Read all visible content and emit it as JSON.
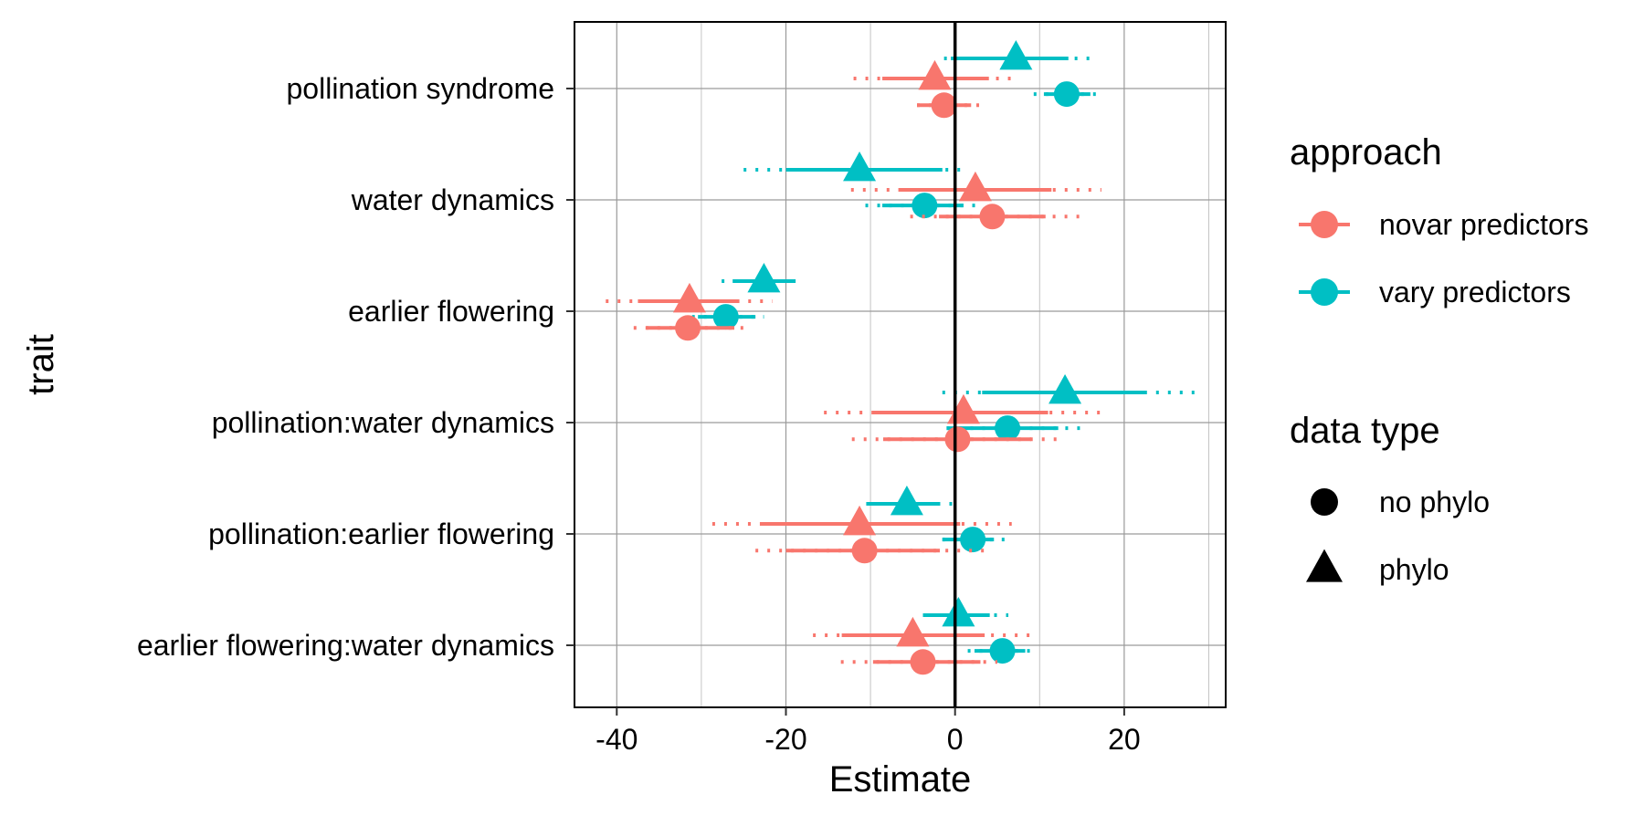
{
  "chart_data": {
    "type": "scatter",
    "subtype": "forest-plot",
    "xlabel": "Estimate",
    "ylabel": "trait",
    "xlim": [
      -45,
      32
    ],
    "x_ticks": [
      -40,
      -20,
      0,
      20
    ],
    "x_tick_labels": [
      "-40",
      "-20",
      "0",
      "20"
    ],
    "x_minor_ticks": [
      -30,
      -10,
      10,
      30
    ],
    "reference_line_x": 0,
    "grid": true,
    "categories": [
      "pollination syndrome",
      "water dynamics",
      "earlier flowering",
      "pollination:water dynamics",
      "pollination:earlier flowering",
      "earlier flowering:water dynamics"
    ],
    "legend": {
      "placement": "right",
      "approach": {
        "title": "approach",
        "entries": [
          {
            "key": "novar",
            "label": "novar predictors",
            "color": "#F8766D"
          },
          {
            "key": "vary",
            "label": "vary predictors",
            "color": "#00BFC4"
          }
        ]
      },
      "data_type": {
        "title": "data type",
        "entries": [
          {
            "key": "nophylo",
            "label": "no phylo",
            "shape": "circle"
          },
          {
            "key": "phylo",
            "label": "phylo",
            "shape": "triangle"
          }
        ]
      }
    },
    "series": [
      {
        "approach": "vary",
        "data_type": "phylo",
        "offset": -0.27,
        "points": [
          {
            "trait": "pollination syndrome",
            "estimate": 7.2,
            "ci_inner": [
              -0.5,
              13.4
            ],
            "ci_outer": [
              -1.3,
              16.8
            ]
          },
          {
            "trait": "water dynamics",
            "estimate": -11.3,
            "ci_inner": [
              -20.0,
              -1.5
            ],
            "ci_outer": [
              -25.0,
              0.8
            ]
          },
          {
            "trait": "earlier flowering",
            "estimate": -22.6,
            "ci_inner": [
              -26.3,
              -19.0
            ],
            "ci_outer": [
              -27.6,
              -18.0
            ]
          },
          {
            "trait": "pollination:water dynamics",
            "estimate": 13.0,
            "ci_inner": [
              3.2,
              22.6
            ],
            "ci_outer": [
              -1.5,
              28.3
            ]
          },
          {
            "trait": "pollination:earlier flowering",
            "estimate": -5.7,
            "ci_inner": [
              -10.5,
              -2.0
            ],
            "ci_outer": [
              -10.5,
              0.0
            ]
          },
          {
            "trait": "earlier flowering:water dynamics",
            "estimate": 0.4,
            "ci_inner": [
              -3.8,
              4.1
            ],
            "ci_outer": [
              -3.8,
              6.3
            ]
          }
        ]
      },
      {
        "approach": "novar",
        "data_type": "phylo",
        "offset": -0.09,
        "points": [
          {
            "trait": "pollination syndrome",
            "estimate": -2.4,
            "ci_inner": [
              -8.6,
              4.0
            ],
            "ci_outer": [
              -12.0,
              7.6
            ]
          },
          {
            "trait": "water dynamics",
            "estimate": 2.4,
            "ci_inner": [
              -6.7,
              11.4
            ],
            "ci_outer": [
              -12.3,
              17.3
            ]
          },
          {
            "trait": "earlier flowering",
            "estimate": -31.4,
            "ci_inner": [
              -37.5,
              -25.5
            ],
            "ci_outer": [
              -41.3,
              -21.6
            ]
          },
          {
            "trait": "pollination:water dynamics",
            "estimate": 1.0,
            "ci_inner": [
              -9.6,
              11.0
            ],
            "ci_outer": [
              -15.5,
              17.5
            ]
          },
          {
            "trait": "pollination:earlier flowering",
            "estimate": -11.3,
            "ci_inner": [
              -23.0,
              0.6
            ],
            "ci_outer": [
              -28.7,
              6.7
            ]
          },
          {
            "trait": "earlier flowering:water dynamics",
            "estimate": -5.0,
            "ci_inner": [
              -13.4,
              3.5
            ],
            "ci_outer": [
              -16.8,
              8.9
            ]
          }
        ]
      },
      {
        "approach": "vary",
        "data_type": "nophylo",
        "offset": 0.05,
        "points": [
          {
            "trait": "pollination syndrome",
            "estimate": 13.2,
            "ci_inner": [
              10.5,
              16.0
            ],
            "ci_outer": [
              9.3,
              17.3
            ]
          },
          {
            "trait": "water dynamics",
            "estimate": -3.6,
            "ci_inner": [
              -8.6,
              1.0
            ],
            "ci_outer": [
              -10.6,
              2.5
            ]
          },
          {
            "trait": "earlier flowering",
            "estimate": -27.1,
            "ci_inner": [
              -30.4,
              -23.6
            ],
            "ci_outer": [
              -31.1,
              -22.6
            ]
          },
          {
            "trait": "pollination:water dynamics",
            "estimate": 6.2,
            "ci_inner": [
              -1.0,
              12.2
            ],
            "ci_outer": [
              -1.0,
              15.0
            ]
          },
          {
            "trait": "pollination:earlier flowering",
            "estimate": 2.1,
            "ci_inner": [
              -1.5,
              4.6
            ],
            "ci_outer": [
              -1.5,
              6.6
            ]
          },
          {
            "trait": "earlier flowering:water dynamics",
            "estimate": 5.6,
            "ci_inner": [
              2.3,
              8.3
            ],
            "ci_outer": [
              1.5,
              9.6
            ]
          }
        ]
      },
      {
        "approach": "novar",
        "data_type": "nophylo",
        "offset": 0.15,
        "points": [
          {
            "trait": "pollination syndrome",
            "estimate": -1.3,
            "ci_inner": [
              -4.5,
              1.9
            ],
            "ci_outer": [
              -4.5,
              3.6
            ]
          },
          {
            "trait": "water dynamics",
            "estimate": 4.4,
            "ci_inner": [
              -1.9,
              10.7
            ],
            "ci_outer": [
              -5.3,
              14.7
            ]
          },
          {
            "trait": "earlier flowering",
            "estimate": -31.6,
            "ci_inner": [
              -36.5,
              -26.1
            ],
            "ci_outer": [
              -38.0,
              -24.2
            ]
          },
          {
            "trait": "pollination:water dynamics",
            "estimate": 0.3,
            "ci_inner": [
              -8.5,
              9.0
            ],
            "ci_outer": [
              -12.2,
              13.0
            ]
          },
          {
            "trait": "pollination:earlier flowering",
            "estimate": -10.7,
            "ci_inner": [
              -20.0,
              -1.8
            ],
            "ci_outer": [
              -23.6,
              3.7
            ]
          },
          {
            "trait": "earlier flowering:water dynamics",
            "estimate": -3.8,
            "ci_inner": [
              -9.7,
              3.0
            ],
            "ci_outer": [
              -13.5,
              5.0
            ]
          }
        ]
      }
    ]
  }
}
